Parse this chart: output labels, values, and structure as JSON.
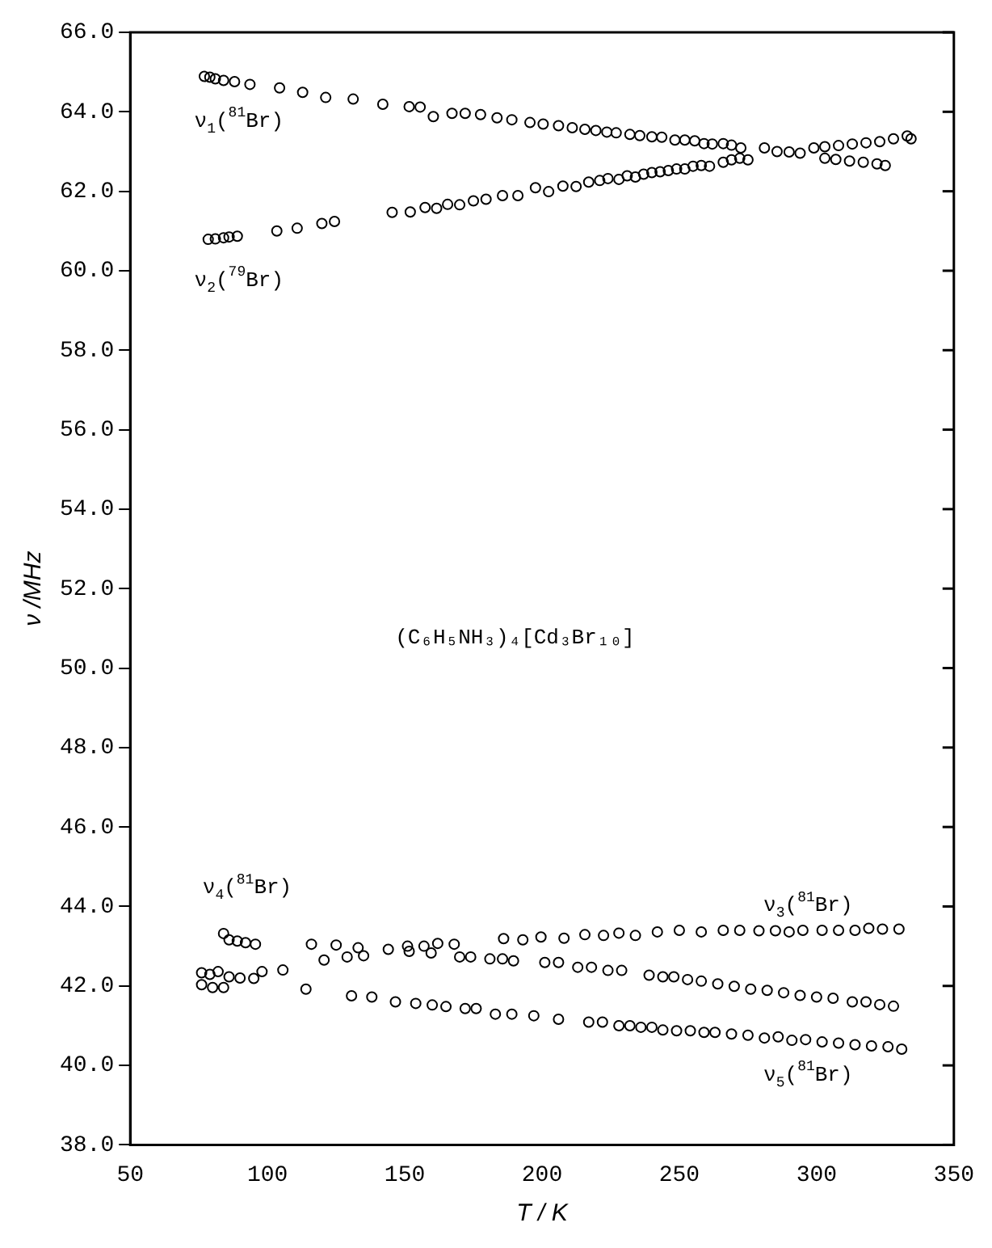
{
  "chart_data": {
    "type": "scatter",
    "xlabel": "T / K",
    "ylabel": "ν /MHz",
    "xlim": [
      50,
      350
    ],
    "ylim": [
      38,
      66
    ],
    "xticks": [
      50,
      100,
      150,
      200,
      250,
      300,
      350
    ],
    "yticks": [
      {
        "value": 38,
        "label": "38.0"
      },
      {
        "value": 40,
        "label": "40.0"
      },
      {
        "value": 42,
        "label": "42.0"
      },
      {
        "value": 44,
        "label": "44.0"
      },
      {
        "value": 46,
        "label": "46.0"
      },
      {
        "value": 48,
        "label": "48.0"
      },
      {
        "value": 50,
        "label": "50.0"
      },
      {
        "value": 52,
        "label": "52.0"
      },
      {
        "value": 54,
        "label": "54.0"
      },
      {
        "value": 56,
        "label": "56.0"
      },
      {
        "value": 58,
        "label": "58.0"
      },
      {
        "value": 60,
        "label": "60.0"
      },
      {
        "value": 62,
        "label": "62.0"
      },
      {
        "value": 64,
        "label": "64.0"
      },
      {
        "value": 66,
        "label": "66.0"
      }
    ],
    "grid": false,
    "legend": false,
    "marker": "circle",
    "series": [
      {
        "color": "#000000",
        "x": [
          77,
          79,
          81,
          84,
          88,
          93.6,
          104.4,
          112.8,
          121.2,
          131.2,
          142,
          151.6,
          155.6,
          160.4,
          167.2,
          172,
          177.6,
          183.6,
          189,
          195.6,
          200.4,
          206,
          211,
          215.6,
          219.6,
          223.6,
          227,
          232,
          235.6,
          240,
          243.6,
          248.4,
          252,
          255.6,
          259,
          262,
          266,
          269,
          272.4,
          281,
          285.6,
          290,
          294,
          303,
          307,
          312,
          317,
          322,
          325
        ],
        "values": [
          64.89,
          64.87,
          64.83,
          64.79,
          64.76,
          64.69,
          64.6,
          64.49,
          64.36,
          64.32,
          64.19,
          64.13,
          64.12,
          63.88,
          63.96,
          63.96,
          63.93,
          63.85,
          63.8,
          63.73,
          63.69,
          63.65,
          63.6,
          63.56,
          63.53,
          63.49,
          63.47,
          63.43,
          63.4,
          63.37,
          63.36,
          63.29,
          63.29,
          63.27,
          63.2,
          63.19,
          63.2,
          63.16,
          63.09,
          63.09,
          63,
          62.99,
          62.96,
          62.83,
          62.8,
          62.76,
          62.73,
          62.69,
          62.65
        ]
      },
      {
        "color": "#000000",
        "x": [
          78.4,
          81,
          84,
          86,
          89,
          103.4,
          110.8,
          119.8,
          124.4,
          145.4,
          152,
          157.4,
          161.6,
          165.6,
          170,
          175,
          179.6,
          185.6,
          191.2,
          197.6,
          202.4,
          207.6,
          212.4,
          217,
          221,
          224,
          228,
          231,
          234,
          237,
          240,
          243,
          246,
          249,
          252,
          255,
          258,
          261,
          266,
          269,
          272,
          275,
          299,
          303,
          308,
          313,
          318,
          323,
          328,
          333,
          334.4
        ],
        "values": [
          60.79,
          60.8,
          60.83,
          60.85,
          60.87,
          61,
          61.07,
          61.19,
          61.24,
          61.47,
          61.48,
          61.59,
          61.57,
          61.67,
          61.66,
          61.76,
          61.8,
          61.89,
          61.89,
          62.09,
          61.99,
          62.13,
          62.12,
          62.23,
          62.27,
          62.32,
          62.3,
          62.39,
          62.36,
          62.43,
          62.47,
          62.49,
          62.52,
          62.56,
          62.56,
          62.63,
          62.65,
          62.63,
          62.73,
          62.79,
          62.83,
          62.79,
          63.09,
          63.12,
          63.15,
          63.19,
          63.22,
          63.25,
          63.32,
          63.39,
          63.32
        ]
      },
      {
        "color": "#000000",
        "x": [
          84,
          86,
          89,
          92,
          95.6,
          116,
          125,
          133,
          144,
          151,
          157,
          162,
          168,
          186,
          193,
          199.6,
          208,
          215.6,
          222.4,
          228,
          234,
          242,
          250,
          258,
          266,
          272,
          279,
          285,
          290,
          295,
          302,
          308,
          314,
          319,
          324,
          330
        ],
        "values": [
          43.32,
          43.16,
          43.13,
          43.09,
          43.05,
          43.05,
          43.03,
          42.96,
          42.92,
          43,
          43,
          43.07,
          43.05,
          43.19,
          43.16,
          43.23,
          43.2,
          43.29,
          43.27,
          43.33,
          43.27,
          43.36,
          43.4,
          43.36,
          43.4,
          43.4,
          43.39,
          43.39,
          43.36,
          43.4,
          43.4,
          43.4,
          43.4,
          43.45,
          43.43,
          43.43
        ]
      },
      {
        "color": "#000000",
        "x": [
          76,
          79,
          82,
          86,
          90,
          95,
          98,
          105.6,
          120.6,
          129,
          135,
          151.6,
          159.6,
          170,
          174,
          181,
          185.6,
          189.6,
          201,
          206,
          213,
          218,
          224,
          229,
          239,
          244,
          248,
          253,
          258,
          264,
          270,
          276,
          282,
          288,
          294,
          300,
          306,
          313,
          318,
          323,
          328
        ],
        "values": [
          42.33,
          42.29,
          42.36,
          42.23,
          42.2,
          42.19,
          42.36,
          42.4,
          42.65,
          42.73,
          42.76,
          42.87,
          42.83,
          42.73,
          42.73,
          42.68,
          42.68,
          42.63,
          42.59,
          42.59,
          42.47,
          42.47,
          42.39,
          42.39,
          42.27,
          42.23,
          42.23,
          42.16,
          42.12,
          42.05,
          41.99,
          41.92,
          41.89,
          41.83,
          41.76,
          41.72,
          41.69,
          41.6,
          41.6,
          41.53,
          41.49
        ]
      },
      {
        "color": "#000000",
        "x": [
          76,
          80,
          84,
          114,
          130.6,
          138,
          146.6,
          154,
          160,
          165,
          172,
          176,
          183,
          189,
          197,
          206,
          217,
          222,
          228,
          232,
          236,
          240,
          244,
          249,
          254,
          259,
          263,
          269,
          275,
          281,
          286,
          291,
          296,
          302,
          308,
          314,
          320,
          326,
          331
        ],
        "values": [
          42.03,
          41.96,
          41.96,
          41.92,
          41.75,
          41.72,
          41.6,
          41.56,
          41.52,
          41.48,
          41.43,
          41.43,
          41.29,
          41.29,
          41.25,
          41.16,
          41.09,
          41.09,
          41,
          41,
          40.96,
          40.96,
          40.89,
          40.87,
          40.87,
          40.83,
          40.83,
          40.79,
          40.76,
          40.69,
          40.72,
          40.63,
          40.65,
          40.59,
          40.56,
          40.52,
          40.49,
          40.47,
          40.41
        ]
      }
    ],
    "annotations": [
      "ν$_{1}$($^{81}$Br)",
      "ν$_{2}$($^{79}$Br)",
      "ν$_{4}$($^{81}$Br)",
      "ν$_{3}$($^{81}$Br)",
      "ν$_{5}$($^{81}$Br)",
      "(C₆H₅NH₃)₄[Cd₃Br₁₀]"
    ]
  }
}
